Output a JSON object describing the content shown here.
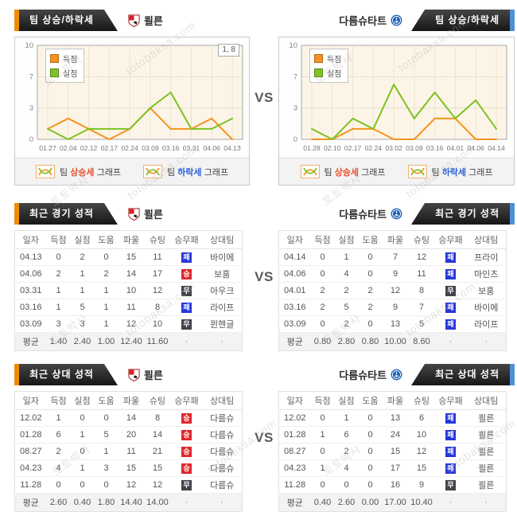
{
  "page": {
    "vs": "VS",
    "watermark": {
      "ko": "토토박사",
      "en": "totobaksa.com"
    }
  },
  "teams": {
    "left": {
      "name": "쾰른"
    },
    "right": {
      "name": "다름슈타트"
    }
  },
  "trend_section": {
    "title": "팀 상승/하락세",
    "footer": {
      "prefix": "팀",
      "suffix": "그래프",
      "up": "상승세",
      "down": "하락세"
    }
  },
  "chart_data": [
    {
      "type": "line",
      "team": "쾰른",
      "x": [
        "01.27",
        "02.04",
        "02.12",
        "02.17",
        "02.24",
        "03.09",
        "03.16",
        "03.31",
        "04.06",
        "04.13"
      ],
      "yticks": [
        0,
        3,
        7,
        10
      ],
      "ylim": [
        0,
        10
      ],
      "grid": true,
      "legend_position": "top-left",
      "annotation": "1, 8",
      "series": [
        {
          "name": "득점",
          "color": "#f6921e",
          "values": [
            1,
            2,
            1,
            0,
            1,
            3,
            1,
            1,
            2,
            0
          ]
        },
        {
          "name": "실점",
          "color": "#7cc220",
          "values": [
            1,
            0,
            1,
            1,
            1,
            3,
            5,
            1,
            1,
            2
          ]
        }
      ]
    },
    {
      "type": "line",
      "team": "다름슈타트",
      "x": [
        "01.28",
        "02.10",
        "02.17",
        "02.24",
        "03.02",
        "03.09",
        "03.16",
        "04.01",
        "04.06",
        "04.14"
      ],
      "yticks": [
        0,
        3,
        7,
        10
      ],
      "ylim": [
        0,
        10
      ],
      "grid": true,
      "legend_position": "top-left",
      "annotation": "",
      "series": [
        {
          "name": "득점",
          "color": "#f6921e",
          "values": [
            0,
            0,
            1,
            1,
            0,
            0,
            2,
            2,
            0,
            0
          ]
        },
        {
          "name": "실점",
          "color": "#7cc220",
          "values": [
            1,
            0,
            2,
            1,
            6,
            2,
            5,
            2,
            4,
            1
          ]
        }
      ]
    }
  ],
  "tables": {
    "columns": [
      "일자",
      "득점",
      "실점",
      "도움",
      "파울",
      "슈팅",
      "승무패",
      "상대팀"
    ],
    "avg_label": "평균",
    "dot": "·",
    "result_colors": {
      "승": "#e0262b",
      "무": "#42444b",
      "패": "#2737d8"
    },
    "recent": {
      "title": "최근 경기 성적",
      "left": {
        "rows": [
          {
            "date": "04.13",
            "score": "0",
            "concede": "2",
            "assist": "0",
            "foul": "15",
            "shoot": "11",
            "result": "패",
            "opponent": "바이에"
          },
          {
            "date": "04.06",
            "score": "2",
            "concede": "1",
            "assist": "2",
            "foul": "14",
            "shoot": "17",
            "result": "승",
            "opponent": "보훔"
          },
          {
            "date": "03.31",
            "score": "1",
            "concede": "1",
            "assist": "1",
            "foul": "10",
            "shoot": "12",
            "result": "무",
            "opponent": "아우크"
          },
          {
            "date": "03.16",
            "score": "1",
            "concede": "5",
            "assist": "1",
            "foul": "11",
            "shoot": "8",
            "result": "패",
            "opponent": "라이프"
          },
          {
            "date": "03.09",
            "score": "3",
            "concede": "3",
            "assist": "1",
            "foul": "12",
            "shoot": "10",
            "result": "무",
            "opponent": "뮌헨글"
          }
        ],
        "avg": [
          "1.40",
          "2.40",
          "1.00",
          "12.40",
          "11.60"
        ]
      },
      "right": {
        "rows": [
          {
            "date": "04.14",
            "score": "0",
            "concede": "1",
            "assist": "0",
            "foul": "7",
            "shoot": "12",
            "result": "패",
            "opponent": "프라이"
          },
          {
            "date": "04.06",
            "score": "0",
            "concede": "4",
            "assist": "0",
            "foul": "9",
            "shoot": "11",
            "result": "패",
            "opponent": "마인츠"
          },
          {
            "date": "04.01",
            "score": "2",
            "concede": "2",
            "assist": "2",
            "foul": "12",
            "shoot": "8",
            "result": "무",
            "opponent": "보훔"
          },
          {
            "date": "03.16",
            "score": "2",
            "concede": "5",
            "assist": "2",
            "foul": "9",
            "shoot": "7",
            "result": "패",
            "opponent": "바이에"
          },
          {
            "date": "03.09",
            "score": "0",
            "concede": "2",
            "assist": "0",
            "foul": "13",
            "shoot": "5",
            "result": "패",
            "opponent": "라이프"
          }
        ],
        "avg": [
          "0.80",
          "2.80",
          "0.80",
          "10.00",
          "8.60"
        ]
      }
    },
    "h2h": {
      "title": "최근 상대 성적",
      "left": {
        "rows": [
          {
            "date": "12.02",
            "score": "1",
            "concede": "0",
            "assist": "0",
            "foul": "14",
            "shoot": "8",
            "result": "승",
            "opponent": "다름슈"
          },
          {
            "date": "01.28",
            "score": "6",
            "concede": "1",
            "assist": "5",
            "foul": "20",
            "shoot": "14",
            "result": "승",
            "opponent": "다름슈"
          },
          {
            "date": "08.27",
            "score": "2",
            "concede": "0",
            "assist": "1",
            "foul": "11",
            "shoot": "21",
            "result": "승",
            "opponent": "다름슈"
          },
          {
            "date": "04.23",
            "score": "4",
            "concede": "1",
            "assist": "3",
            "foul": "15",
            "shoot": "15",
            "result": "승",
            "opponent": "다름슈"
          },
          {
            "date": "11.28",
            "score": "0",
            "concede": "0",
            "assist": "0",
            "foul": "12",
            "shoot": "12",
            "result": "무",
            "opponent": "다름슈"
          }
        ],
        "avg": [
          "2.60",
          "0.40",
          "1.80",
          "14.40",
          "14.00"
        ]
      },
      "right": {
        "rows": [
          {
            "date": "12.02",
            "score": "0",
            "concede": "1",
            "assist": "0",
            "foul": "13",
            "shoot": "6",
            "result": "패",
            "opponent": "쾰른"
          },
          {
            "date": "01.28",
            "score": "1",
            "concede": "6",
            "assist": "0",
            "foul": "24",
            "shoot": "10",
            "result": "패",
            "opponent": "쾰른"
          },
          {
            "date": "08.27",
            "score": "0",
            "concede": "2",
            "assist": "0",
            "foul": "15",
            "shoot": "12",
            "result": "패",
            "opponent": "쾰른"
          },
          {
            "date": "04.23",
            "score": "1",
            "concede": "4",
            "assist": "0",
            "foul": "17",
            "shoot": "15",
            "result": "패",
            "opponent": "쾰른"
          },
          {
            "date": "11.28",
            "score": "0",
            "concede": "0",
            "assist": "0",
            "foul": "16",
            "shoot": "9",
            "result": "무",
            "opponent": "쾰른"
          }
        ],
        "avg": [
          "0.40",
          "2.60",
          "0.00",
          "17.00",
          "10.40"
        ]
      }
    }
  }
}
